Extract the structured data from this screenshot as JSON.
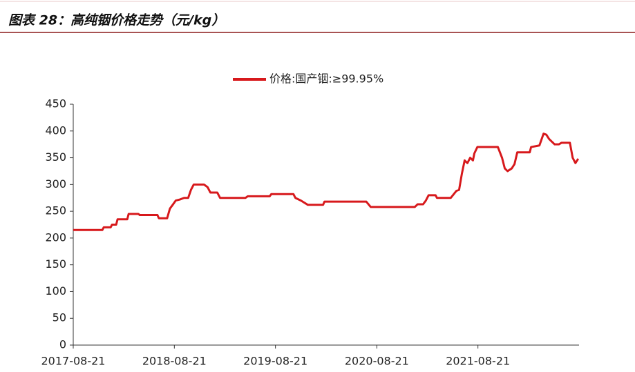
{
  "chart_data": {
    "type": "line",
    "title": "图表 28：高纯铟价格走势（元/kg）",
    "x": [
      "2017-08-21",
      "2017-12-04",
      "2017-12-09",
      "2018-01-03",
      "2018-01-08",
      "2018-01-23",
      "2018-01-28",
      "2018-03-04",
      "2018-03-09",
      "2018-04-13",
      "2018-04-18",
      "2018-06-21",
      "2018-06-26",
      "2018-07-26",
      "2018-08-05",
      "2018-08-15",
      "2018-08-26",
      "2018-09-10",
      "2018-09-25",
      "2018-10-10",
      "2018-10-20",
      "2018-10-30",
      "2018-12-06",
      "2018-12-19",
      "2018-12-29",
      "2019-01-23",
      "2019-02-02",
      "2019-05-05",
      "2019-05-13",
      "2019-07-31",
      "2019-08-06",
      "2019-10-25",
      "2019-11-01",
      "2019-11-21",
      "2019-12-16",
      "2020-02-09",
      "2020-02-14",
      "2020-07-14",
      "2020-07-30",
      "2021-01-05",
      "2021-01-15",
      "2021-02-04",
      "2021-02-14",
      "2021-02-24",
      "2021-03-21",
      "2021-03-26",
      "2021-05-15",
      "2021-06-04",
      "2021-06-14",
      "2021-06-24",
      "2021-07-04",
      "2021-07-14",
      "2021-07-24",
      "2021-08-03",
      "2021-08-08",
      "2021-08-19",
      "2021-11-01",
      "2021-11-16",
      "2021-11-26",
      "2021-12-06",
      "2021-12-21",
      "2021-12-31",
      "2022-01-10",
      "2022-02-24",
      "2022-03-01",
      "2022-03-31",
      "2022-04-15",
      "2022-04-25",
      "2022-05-05",
      "2022-05-25",
      "2022-06-09",
      "2022-06-19",
      "2022-07-19",
      "2022-07-29",
      "2022-08-08",
      "2022-08-18"
    ],
    "series": [
      {
        "name": "价格:国产铟:≥99.95%",
        "color": "#d7191c",
        "values": [
          215,
          215,
          220,
          220,
          225,
          225,
          235,
          235,
          245,
          245,
          243,
          243,
          237,
          237,
          255,
          262,
          270,
          272,
          275,
          275,
          290,
          300,
          300,
          295,
          285,
          285,
          275,
          275,
          278,
          278,
          282,
          282,
          275,
          270,
          262,
          262,
          268,
          268,
          258,
          258,
          263,
          263,
          270,
          280,
          280,
          275,
          275,
          288,
          290,
          320,
          345,
          340,
          350,
          345,
          358,
          370,
          370,
          350,
          330,
          325,
          330,
          338,
          360,
          360,
          370,
          373,
          395,
          393,
          385,
          375,
          375,
          378,
          378,
          350,
          340,
          348
        ]
      }
    ],
    "xlim": [
      "2017-08-21",
      "2022-08-21"
    ],
    "xticks": [
      "2017-08-21",
      "2018-08-21",
      "2019-08-21",
      "2020-08-21",
      "2021-08-21"
    ],
    "ylim": [
      0,
      450
    ],
    "yticks": [
      0,
      50,
      100,
      150,
      200,
      250,
      300,
      350,
      400,
      450
    ],
    "grid": false
  }
}
